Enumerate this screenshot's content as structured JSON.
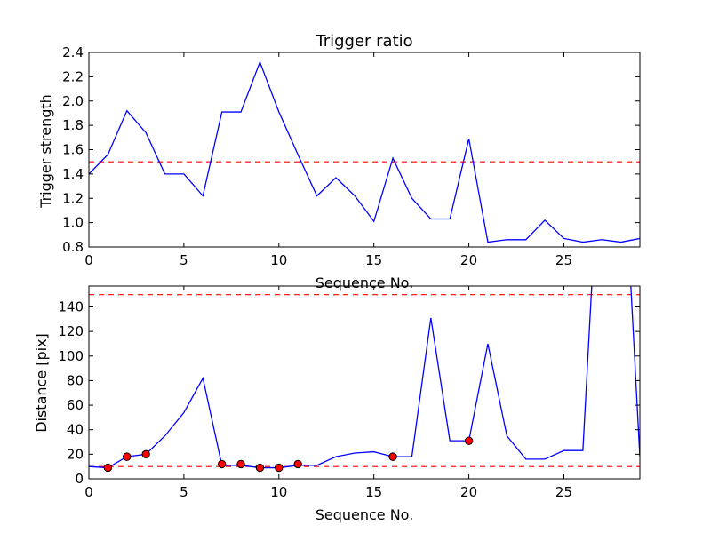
{
  "chart_data": [
    {
      "type": "line",
      "title": "Trigger ratio",
      "xlabel": "Sequence No.",
      "ylabel": "Trigger strength",
      "xlim": [
        0,
        29
      ],
      "ylim": [
        0.8,
        2.4
      ],
      "xticks": [
        0,
        5,
        10,
        15,
        20,
        25
      ],
      "yticks": [
        0.8,
        1.0,
        1.2,
        1.4,
        1.6,
        1.8,
        2.0,
        2.2,
        2.4
      ],
      "ytick_labels": [
        "0.8",
        "1.0",
        "1.2",
        "1.4",
        "1.6",
        "1.8",
        "2.0",
        "2.2",
        "2.4"
      ],
      "grid": false,
      "series": [
        {
          "color": "#0000ff",
          "style": "solid",
          "x": [
            0,
            1,
            2,
            3,
            4,
            5,
            6,
            7,
            8,
            9,
            10,
            11,
            12,
            13,
            14,
            15,
            16,
            17,
            18,
            19,
            20,
            21,
            22,
            23,
            24,
            25,
            26,
            27,
            28,
            29
          ],
          "y": [
            1.4,
            1.56,
            1.92,
            1.74,
            1.4,
            1.4,
            1.22,
            1.91,
            1.91,
            2.32,
            1.91,
            1.56,
            1.22,
            1.37,
            1.22,
            1.01,
            1.53,
            1.2,
            1.03,
            1.03,
            1.69,
            0.84,
            0.86,
            0.86,
            1.02,
            0.87,
            0.84,
            0.86,
            0.84,
            0.87
          ]
        }
      ],
      "hlines": [
        {
          "y": 1.5,
          "color": "#ff0000",
          "style": "dashed"
        }
      ]
    },
    {
      "type": "line",
      "title": "",
      "xlabel": "Sequence No.",
      "ylabel": "Distance [pix]",
      "xlim": [
        0,
        29
      ],
      "ylim": [
        0,
        157
      ],
      "xticks": [
        0,
        5,
        10,
        15,
        20,
        25
      ],
      "yticks": [
        0,
        20,
        40,
        60,
        80,
        100,
        120,
        140
      ],
      "ytick_labels": [
        "0",
        "20",
        "40",
        "60",
        "80",
        "100",
        "120",
        "140"
      ],
      "grid": false,
      "series": [
        {
          "color": "#0000ff",
          "style": "solid",
          "x": [
            0,
            1,
            2,
            3,
            4,
            5,
            6,
            7,
            8,
            9,
            10,
            11,
            12,
            13,
            14,
            15,
            16,
            17,
            18,
            19,
            20,
            21,
            22,
            23,
            24,
            25,
            26,
            27,
            28,
            29
          ],
          "y": [
            10,
            9,
            18,
            20,
            35,
            54,
            82,
            11,
            11,
            9,
            9,
            11,
            11,
            18,
            21,
            22,
            18,
            18,
            131,
            31,
            31,
            110,
            35,
            16,
            16,
            23,
            23,
            310,
            310,
            18
          ]
        },
        {
          "color": "#ff0000",
          "style": "markers",
          "x": [
            1,
            2,
            3,
            7,
            8,
            9,
            10,
            11,
            16,
            20
          ],
          "y": [
            9,
            18,
            20,
            12,
            12,
            9,
            9,
            12,
            18,
            31
          ]
        }
      ],
      "hlines": [
        {
          "y": 150,
          "color": "#ff0000",
          "style": "dashed"
        },
        {
          "y": 10,
          "color": "#ff0000",
          "style": "dashed"
        }
      ]
    }
  ]
}
